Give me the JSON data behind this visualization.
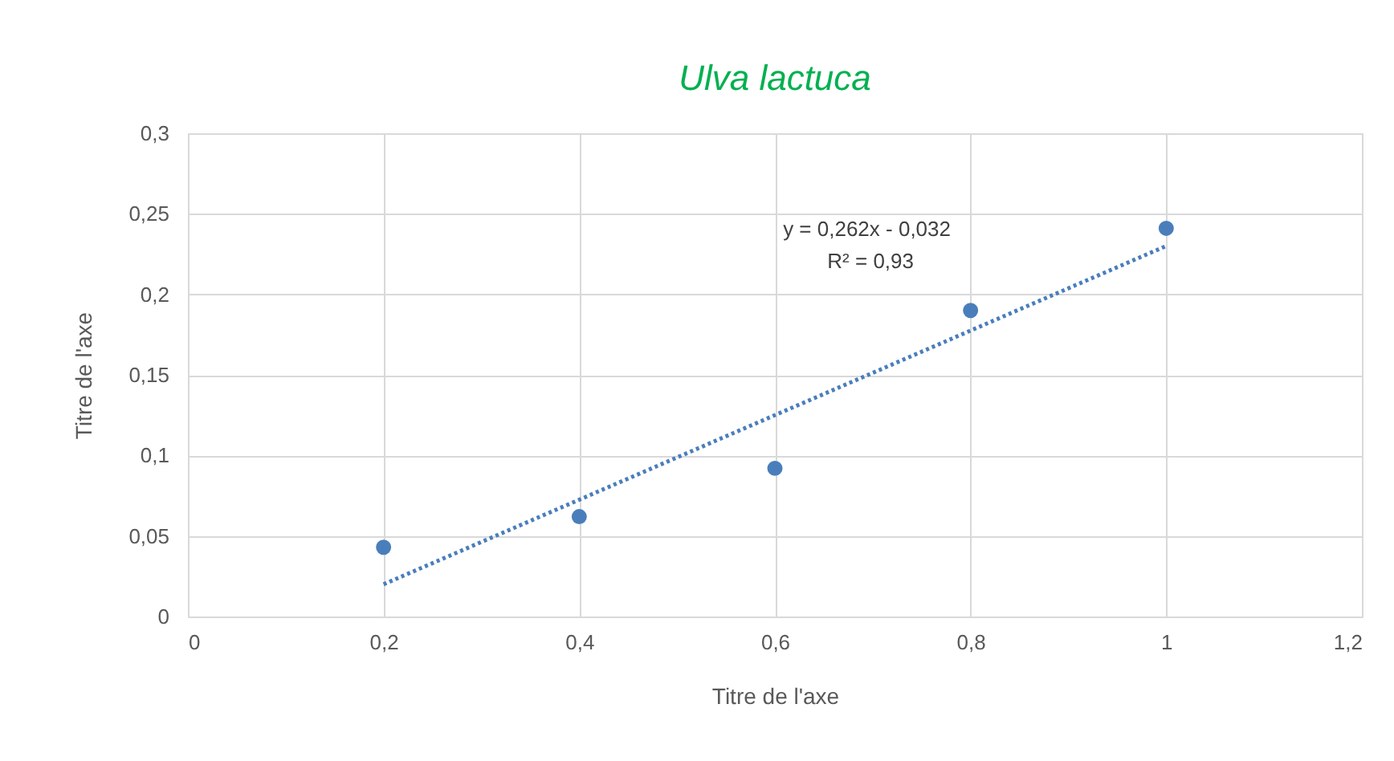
{
  "chart_data": {
    "type": "scatter",
    "title": "Ulva lactuca",
    "xlabel": "Titre de l'axe",
    "ylabel": "Titre de l'axe",
    "x": [
      0.2,
      0.4,
      0.6,
      0.8,
      1.0
    ],
    "series": [
      {
        "type": "scatter",
        "color": "#4a7ebb",
        "values": [
          0.043,
          0.062,
          0.092,
          0.19,
          0.241
        ],
        "marker": "circle"
      },
      {
        "type": "line",
        "color": "#4a7ebb",
        "x": [
          0.2,
          1.0
        ],
        "values": [
          0.02,
          0.23
        ],
        "line_style": "dotted"
      }
    ],
    "xlim": [
      0,
      1.2
    ],
    "ylim": [
      0,
      0.3
    ],
    "xticks": [
      {
        "value": 0,
        "label": "0"
      },
      {
        "value": 0.2,
        "label": "0,2"
      },
      {
        "value": 0.4,
        "label": "0,4"
      },
      {
        "value": 0.6,
        "label": "0,6"
      },
      {
        "value": 0.8,
        "label": "0,8"
      },
      {
        "value": 1,
        "label": "1"
      },
      {
        "value": 1.2,
        "label": "1,2"
      }
    ],
    "yticks": [
      {
        "value": 0,
        "label": "0"
      },
      {
        "value": 0.05,
        "label": "0,05"
      },
      {
        "value": 0.1,
        "label": "0,1"
      },
      {
        "value": 0.15,
        "label": "0,15"
      },
      {
        "value": 0.2,
        "label": "0,2"
      },
      {
        "value": 0.25,
        "label": "0,25"
      },
      {
        "value": 0.3,
        "label": "0,3"
      }
    ],
    "annotations": [
      "y = 0,262x - 0,032",
      "R² = 0,93"
    ],
    "grid": true
  }
}
